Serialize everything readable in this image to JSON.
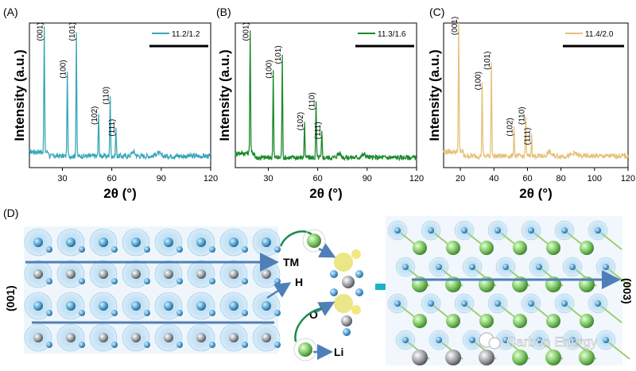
{
  "figure": {
    "panel_labels": [
      "(A)",
      "(B)",
      "(C)",
      "(D)"
    ],
    "watermark": "Carbon Energy",
    "panel_d_labels": {
      "tm": "TM",
      "h": "H",
      "o": "O",
      "li": "Li",
      "left_plane": "(001)",
      "right_plane": "(003)"
    }
  },
  "chart_data": [
    {
      "type": "line",
      "panel": "(A)",
      "color": "#3aa7b9",
      "series": [
        {
          "name": "11.2/1.2"
        }
      ],
      "xlabel": "2θ (°)",
      "ylabel": "Intensity (a.u.)",
      "xlim": [
        10,
        120
      ],
      "xticks": [
        30,
        60,
        90,
        120
      ],
      "baseline": 0.08,
      "peaks": [
        {
          "x": 19.0,
          "h": 0.86,
          "label": "(001)"
        },
        {
          "x": 33.0,
          "h": 0.6,
          "label": "(100)"
        },
        {
          "x": 38.5,
          "h": 0.86,
          "label": "(101)"
        },
        {
          "x": 52.0,
          "h": 0.28,
          "label": "(102)"
        },
        {
          "x": 59.0,
          "h": 0.42,
          "label": "(110)"
        },
        {
          "x": 62.5,
          "h": 0.2,
          "label": "(111)"
        }
      ]
    },
    {
      "type": "line",
      "panel": "(B)",
      "color": "#1a8a2a",
      "series": [
        {
          "name": "11.3/1.6"
        }
      ],
      "xlabel": "2θ (°)",
      "ylabel": "Intensity (a.u.)",
      "xlim": [
        10,
        120
      ],
      "xticks": [
        30,
        60,
        90,
        120
      ],
      "baseline": 0.07,
      "peaks": [
        {
          "x": 19.0,
          "h": 0.86,
          "label": "(001)"
        },
        {
          "x": 33.0,
          "h": 0.6,
          "label": "(100)"
        },
        {
          "x": 38.5,
          "h": 0.7,
          "label": "(101)"
        },
        {
          "x": 52.0,
          "h": 0.24,
          "label": "(102)"
        },
        {
          "x": 59.0,
          "h": 0.38,
          "label": "(110)"
        },
        {
          "x": 62.5,
          "h": 0.18,
          "label": "(111)"
        }
      ]
    },
    {
      "type": "line",
      "panel": "(C)",
      "color": "#e5c27a",
      "series": [
        {
          "name": "11.4/2.0"
        }
      ],
      "xlabel": "2θ (°)",
      "ylabel": "Intensity (a.u.)",
      "xlim": [
        10,
        120
      ],
      "xticks": [
        20,
        40,
        60,
        80,
        100,
        120
      ],
      "baseline": 0.08,
      "peaks": [
        {
          "x": 19.0,
          "h": 0.9,
          "label": "(001)"
        },
        {
          "x": 33.0,
          "h": 0.52,
          "label": "(100)"
        },
        {
          "x": 38.5,
          "h": 0.66,
          "label": "(101)"
        },
        {
          "x": 52.0,
          "h": 0.2,
          "label": "(102)"
        },
        {
          "x": 59.0,
          "h": 0.28,
          "label": "(110)"
        },
        {
          "x": 62.5,
          "h": 0.14,
          "label": "(111)"
        }
      ]
    }
  ]
}
